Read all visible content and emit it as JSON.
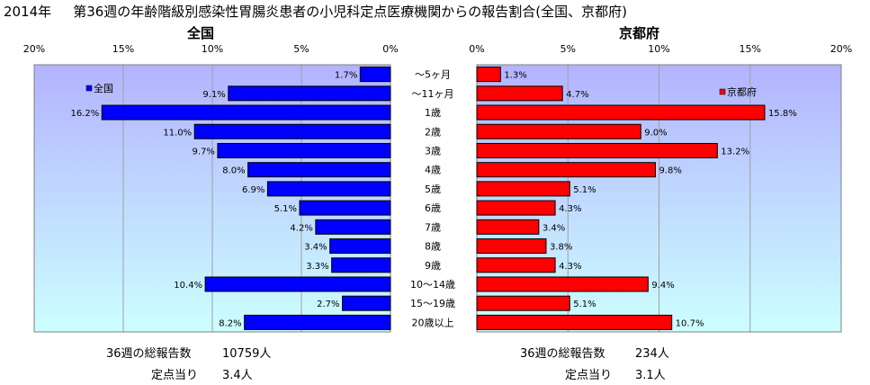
{
  "title": {
    "year": "2014年",
    "text": "第36週の年齢階級別感染性胃腸炎患者の小児科定点医療機関からの報告割合(全国、京都府)"
  },
  "chart_data": [
    {
      "type": "bar",
      "orientation": "horizontal",
      "direction": "right-to-left",
      "title": "全国",
      "legend": "全国",
      "legend_position": "top-left",
      "color": "#0000ff",
      "xlim": [
        0,
        20
      ],
      "x_ticks": [
        "20%",
        "15%",
        "10%",
        "5%",
        "0%"
      ],
      "grid": true,
      "values": [
        1.7,
        9.1,
        16.2,
        11.0,
        9.7,
        8.0,
        6.9,
        5.1,
        4.2,
        3.4,
        3.3,
        10.4,
        2.7,
        8.2
      ],
      "labels": [
        "1.7%",
        "9.1%",
        "16.2%",
        "11.0%",
        "9.7%",
        "8.0%",
        "6.9%",
        "5.1%",
        "4.2%",
        "3.4%",
        "3.3%",
        "10.4%",
        "2.7%",
        "8.2%"
      ]
    },
    {
      "type": "bar",
      "orientation": "horizontal",
      "direction": "left-to-right",
      "title": "京都府",
      "legend": "京都府",
      "legend_position": "top-right",
      "color": "#ff0000",
      "xlim": [
        0,
        20
      ],
      "x_ticks": [
        "0%",
        "5%",
        "10%",
        "15%",
        "20%"
      ],
      "grid": true,
      "values": [
        1.3,
        4.7,
        15.8,
        9.0,
        13.2,
        9.8,
        5.1,
        4.3,
        3.4,
        3.8,
        4.3,
        9.4,
        5.1,
        10.7
      ],
      "labels": [
        "1.3%",
        "4.7%",
        "15.8%",
        "9.0%",
        "13.2%",
        "9.8%",
        "5.1%",
        "4.3%",
        "3.4%",
        "3.8%",
        "4.3%",
        "9.4%",
        "5.1%",
        "10.7%"
      ]
    }
  ],
  "categories": [
    "～5ヶ月",
    "～11ヶ月",
    "1歳",
    "2歳",
    "3歳",
    "4歳",
    "5歳",
    "6歳",
    "7歳",
    "8歳",
    "9歳",
    "10～14歳",
    "15～19歳",
    "20歳以上"
  ],
  "footer": {
    "national": {
      "total_label": "36週の総報告数",
      "total_value": "10759人",
      "per_label": "定点当り",
      "per_value": "3.4人"
    },
    "kyoto": {
      "total_label": "36週の総報告数",
      "total_value": "234人",
      "per_label": "定点当り",
      "per_value": "3.1人"
    }
  },
  "colors": {
    "plot_top": "#b3b3ff",
    "plot_bottom": "#ccffff",
    "grid": "#a0a0a0"
  }
}
